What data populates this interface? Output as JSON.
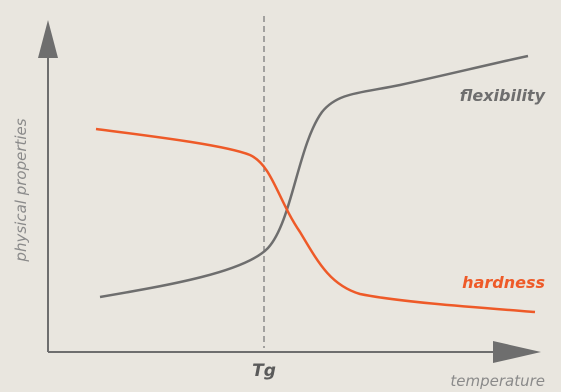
{
  "figure": {
    "ylabel": "physical properties",
    "xlabel": "temperature",
    "tg_label": "Tg",
    "series": [
      {
        "name": "flexibility",
        "color": "#6e6e6e"
      },
      {
        "name": "hardness",
        "color": "#ee5a28"
      }
    ],
    "colors": {
      "background": "#e9e6df",
      "axis": "#6e6e6e",
      "dashed_line": "#8a8a8a",
      "axis_label": "#8a8a8a",
      "tg_label": "#5a5a5a"
    }
  }
}
